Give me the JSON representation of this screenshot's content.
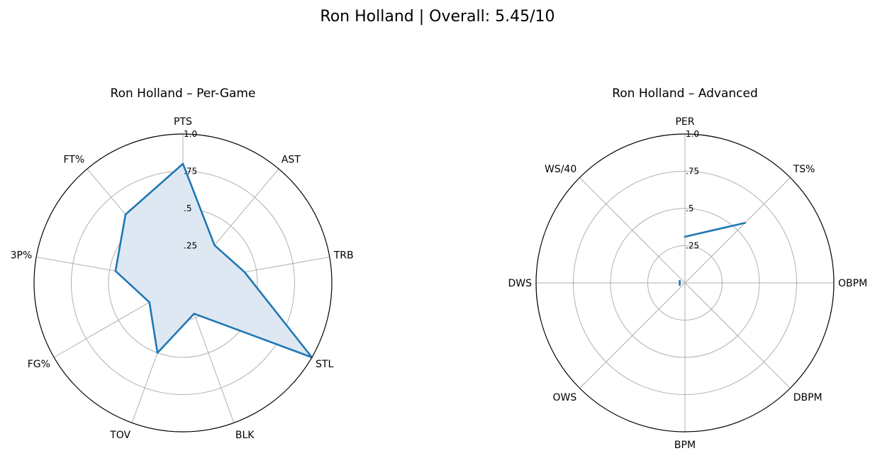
{
  "figure": {
    "title": "Ron Holland | Overall: 5.45/10"
  },
  "colors": {
    "series": "#1f77b4",
    "fill": "#dde8f3",
    "grid": "#b0b0b0",
    "frame": "#000000"
  },
  "chart_data": [
    {
      "type": "radar",
      "title": "Ron Holland – Per-Game",
      "categories": [
        "PTS",
        "AST",
        "TRB",
        "STL",
        "BLK",
        "TOV",
        "FG%",
        "3P%",
        "FT%"
      ],
      "values": [
        0.8,
        0.33,
        0.42,
        1.0,
        0.22,
        0.5,
        0.26,
        0.46,
        0.6
      ],
      "rlim": [
        0,
        1
      ],
      "rticks": [
        0.25,
        0.5,
        0.75,
        1.0
      ],
      "rtick_labels": [
        ".25",
        ".5",
        ".75",
        "1.0"
      ],
      "filled": true,
      "grid": true
    },
    {
      "type": "radar",
      "title": "Ron Holland – Advanced",
      "categories": [
        "PER",
        "TS%",
        "OBPM",
        "DBPM",
        "BPM",
        "OWS",
        "DWS",
        "WS/40"
      ],
      "values": [
        0.31,
        0.57,
        null,
        null,
        null,
        null,
        0.035,
        null
      ],
      "rlim": [
        0,
        1
      ],
      "rticks": [
        0.25,
        0.5,
        0.75,
        1.0
      ],
      "rtick_labels": [
        ".25",
        ".5",
        ".75",
        "1.0"
      ],
      "filled": false,
      "grid": true
    }
  ]
}
